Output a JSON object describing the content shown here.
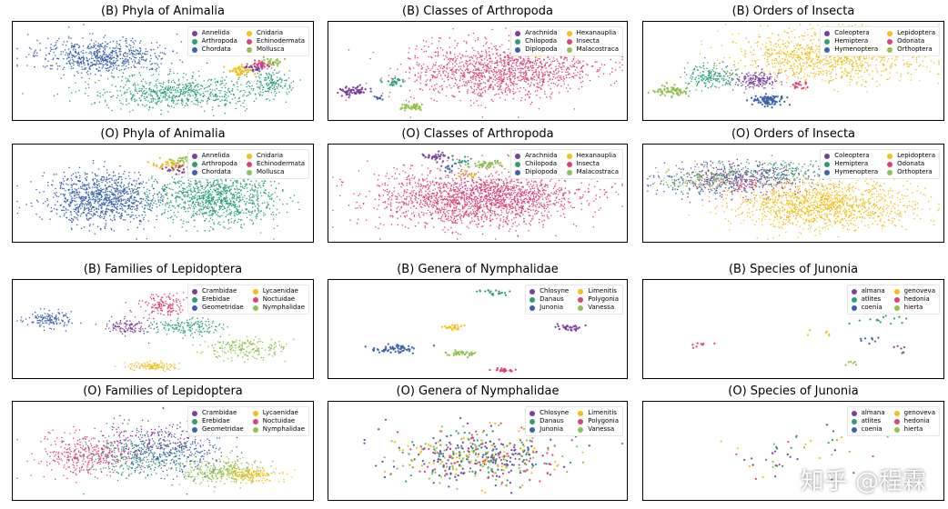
{
  "palette": [
    "#7b3fa0",
    "#2ca07a",
    "#3b62ad",
    "#f2be18",
    "#e0407a",
    "#8fc24c"
  ],
  "chart_data": [
    {
      "type": "scatter",
      "title": "(B) Phyla of Animalia",
      "legend": [
        "Annelida",
        "Arthropoda",
        "Chordata",
        "Cnidaria",
        "Echinodermata",
        "Mollusca"
      ],
      "clusters": [
        {
          "c": 2,
          "x": 0.3,
          "y": 0.35,
          "sx": 0.2,
          "sy": 0.16,
          "n": 650
        },
        {
          "c": 1,
          "x": 0.55,
          "y": 0.72,
          "sx": 0.25,
          "sy": 0.15,
          "n": 650
        },
        {
          "c": 1,
          "x": 0.86,
          "y": 0.62,
          "sx": 0.06,
          "sy": 0.12,
          "n": 140
        },
        {
          "c": 3,
          "x": 0.76,
          "y": 0.5,
          "sx": 0.04,
          "sy": 0.05,
          "n": 50
        },
        {
          "c": 4,
          "x": 0.82,
          "y": 0.43,
          "sx": 0.03,
          "sy": 0.04,
          "n": 30
        },
        {
          "c": 5,
          "x": 0.86,
          "y": 0.4,
          "sx": 0.03,
          "sy": 0.04,
          "n": 25
        },
        {
          "c": 0,
          "x": 0.8,
          "y": 0.47,
          "sx": 0.02,
          "sy": 0.03,
          "n": 20
        }
      ]
    },
    {
      "type": "scatter",
      "title": "(B) Classes of Arthropoda",
      "legend": [
        "Arachnida",
        "Chilopoda",
        "Diplopoda",
        "Hexanauplia",
        "Insecta",
        "Malacostraca"
      ],
      "clusters": [
        {
          "c": 4,
          "x": 0.58,
          "y": 0.5,
          "sx": 0.28,
          "sy": 0.26,
          "n": 1300
        },
        {
          "c": 0,
          "x": 0.08,
          "y": 0.7,
          "sx": 0.05,
          "sy": 0.05,
          "n": 60
        },
        {
          "c": 5,
          "x": 0.28,
          "y": 0.87,
          "sx": 0.04,
          "sy": 0.03,
          "n": 45
        },
        {
          "c": 1,
          "x": 0.22,
          "y": 0.62,
          "sx": 0.03,
          "sy": 0.04,
          "n": 25
        },
        {
          "c": 3,
          "x": 0.7,
          "y": 0.35,
          "sx": 0.02,
          "sy": 0.03,
          "n": 12
        },
        {
          "c": 2,
          "x": 0.17,
          "y": 0.78,
          "sx": 0.02,
          "sy": 0.02,
          "n": 10
        }
      ]
    },
    {
      "type": "scatter",
      "title": "(B) Orders of Insecta",
      "legend": [
        "Coleoptera",
        "Hemiptera",
        "Hymenoptera",
        "Lepidoptera",
        "Odonata",
        "Orthoptera"
      ],
      "clusters": [
        {
          "c": 3,
          "x": 0.62,
          "y": 0.35,
          "sx": 0.28,
          "sy": 0.24,
          "n": 1050
        },
        {
          "c": 1,
          "x": 0.22,
          "y": 0.55,
          "sx": 0.08,
          "sy": 0.1,
          "n": 200
        },
        {
          "c": 0,
          "x": 0.38,
          "y": 0.6,
          "sx": 0.07,
          "sy": 0.08,
          "n": 180
        },
        {
          "c": 2,
          "x": 0.42,
          "y": 0.8,
          "sx": 0.05,
          "sy": 0.05,
          "n": 90
        },
        {
          "c": 5,
          "x": 0.1,
          "y": 0.7,
          "sx": 0.05,
          "sy": 0.05,
          "n": 70
        },
        {
          "c": 4,
          "x": 0.52,
          "y": 0.65,
          "sx": 0.03,
          "sy": 0.04,
          "n": 20
        }
      ]
    },
    {
      "type": "scatter",
      "title": "(O) Phyla of Animalia",
      "legend": [
        "Annelida",
        "Arthropoda",
        "Chordata",
        "Cnidaria",
        "Echinodermata",
        "Mollusca"
      ],
      "clusters": [
        {
          "c": 2,
          "x": 0.3,
          "y": 0.55,
          "sx": 0.17,
          "sy": 0.24,
          "n": 1000
        },
        {
          "c": 1,
          "x": 0.68,
          "y": 0.55,
          "sx": 0.18,
          "sy": 0.24,
          "n": 1000
        },
        {
          "c": 3,
          "x": 0.52,
          "y": 0.2,
          "sx": 0.06,
          "sy": 0.06,
          "n": 40
        },
        {
          "c": 5,
          "x": 0.58,
          "y": 0.16,
          "sx": 0.05,
          "sy": 0.05,
          "n": 30
        },
        {
          "c": 0,
          "x": 0.55,
          "y": 0.25,
          "sx": 0.04,
          "sy": 0.05,
          "n": 20
        },
        {
          "c": 4,
          "x": 0.6,
          "y": 0.22,
          "sx": 0.03,
          "sy": 0.04,
          "n": 15
        }
      ]
    },
    {
      "type": "scatter",
      "title": "(O) Classes of Arthropoda",
      "legend": [
        "Arachnida",
        "Chilopoda",
        "Diplopoda",
        "Hexanauplia",
        "Insecta",
        "Malacostraca"
      ],
      "clusters": [
        {
          "c": 4,
          "x": 0.5,
          "y": 0.55,
          "sx": 0.3,
          "sy": 0.26,
          "n": 1900
        },
        {
          "c": 0,
          "x": 0.36,
          "y": 0.12,
          "sx": 0.04,
          "sy": 0.04,
          "n": 35
        },
        {
          "c": 5,
          "x": 0.53,
          "y": 0.2,
          "sx": 0.05,
          "sy": 0.04,
          "n": 40
        },
        {
          "c": 1,
          "x": 0.44,
          "y": 0.17,
          "sx": 0.03,
          "sy": 0.04,
          "n": 15
        },
        {
          "c": 3,
          "x": 0.46,
          "y": 0.3,
          "sx": 0.03,
          "sy": 0.04,
          "n": 12
        },
        {
          "c": 2,
          "x": 0.4,
          "y": 0.25,
          "sx": 0.02,
          "sy": 0.03,
          "n": 10
        }
      ]
    },
    {
      "type": "scatter",
      "title": "(O) Orders of Insecta",
      "legend": [
        "Coleoptera",
        "Hemiptera",
        "Hymenoptera",
        "Lepidoptera",
        "Odonata",
        "Orthoptera"
      ],
      "clusters": [
        {
          "c": 3,
          "x": 0.6,
          "y": 0.62,
          "sx": 0.27,
          "sy": 0.22,
          "n": 1250
        },
        {
          "c": 0,
          "x": 0.33,
          "y": 0.3,
          "sx": 0.22,
          "sy": 0.12,
          "n": 280
        },
        {
          "c": 2,
          "x": 0.25,
          "y": 0.4,
          "sx": 0.2,
          "sy": 0.12,
          "n": 220
        },
        {
          "c": 1,
          "x": 0.42,
          "y": 0.3,
          "sx": 0.22,
          "sy": 0.12,
          "n": 220
        },
        {
          "c": 5,
          "x": 0.2,
          "y": 0.35,
          "sx": 0.15,
          "sy": 0.12,
          "n": 140
        },
        {
          "c": 4,
          "x": 0.35,
          "y": 0.42,
          "sx": 0.15,
          "sy": 0.1,
          "n": 100
        }
      ]
    },
    {
      "type": "scatter",
      "title": "(B) Families of Lepidoptera",
      "legend": [
        "Crambidae",
        "Erebidae",
        "Geometridae",
        "Lycaenidae",
        "Noctuidae",
        "Nymphalidae"
      ],
      "clusters": [
        {
          "c": 2,
          "x": 0.12,
          "y": 0.4,
          "sx": 0.07,
          "sy": 0.08,
          "n": 140
        },
        {
          "c": 0,
          "x": 0.38,
          "y": 0.48,
          "sx": 0.07,
          "sy": 0.07,
          "n": 110
        },
        {
          "c": 4,
          "x": 0.5,
          "y": 0.25,
          "sx": 0.08,
          "sy": 0.1,
          "n": 150
        },
        {
          "c": 1,
          "x": 0.58,
          "y": 0.48,
          "sx": 0.1,
          "sy": 0.08,
          "n": 160
        },
        {
          "c": 5,
          "x": 0.78,
          "y": 0.7,
          "sx": 0.12,
          "sy": 0.1,
          "n": 200
        },
        {
          "c": 3,
          "x": 0.47,
          "y": 0.88,
          "sx": 0.08,
          "sy": 0.04,
          "n": 120
        }
      ]
    },
    {
      "type": "scatter",
      "title": "(B) Genera of Nymphalidae",
      "legend": [
        "Chlosyne",
        "Danaus",
        "Junonia",
        "Limenitis",
        "Polygonia",
        "Vanessa"
      ],
      "clusters": [
        {
          "c": 2,
          "x": 0.22,
          "y": 0.7,
          "sx": 0.08,
          "sy": 0.04,
          "n": 60
        },
        {
          "c": 5,
          "x": 0.45,
          "y": 0.75,
          "sx": 0.05,
          "sy": 0.03,
          "n": 35
        },
        {
          "c": 3,
          "x": 0.42,
          "y": 0.48,
          "sx": 0.03,
          "sy": 0.03,
          "n": 25
        },
        {
          "c": 4,
          "x": 0.58,
          "y": 0.92,
          "sx": 0.03,
          "sy": 0.02,
          "n": 25
        },
        {
          "c": 0,
          "x": 0.8,
          "y": 0.48,
          "sx": 0.04,
          "sy": 0.03,
          "n": 30
        },
        {
          "c": 1,
          "x": 0.55,
          "y": 0.12,
          "sx": 0.04,
          "sy": 0.03,
          "n": 20
        }
      ]
    },
    {
      "type": "scatter",
      "title": "(B) Species of Junonia",
      "legend": [
        "almana",
        "atlites",
        "coenia",
        "genoveva",
        "hedonia",
        "hierta"
      ],
      "clusters": [
        {
          "c": 1,
          "x": 0.8,
          "y": 0.4,
          "sx": 0.08,
          "sy": 0.05,
          "n": 14
        },
        {
          "c": 2,
          "x": 0.75,
          "y": 0.62,
          "sx": 0.04,
          "sy": 0.04,
          "n": 8
        },
        {
          "c": 4,
          "x": 0.18,
          "y": 0.65,
          "sx": 0.05,
          "sy": 0.05,
          "n": 8
        },
        {
          "c": 0,
          "x": 0.85,
          "y": 0.7,
          "sx": 0.04,
          "sy": 0.05,
          "n": 6
        },
        {
          "c": 3,
          "x": 0.6,
          "y": 0.55,
          "sx": 0.05,
          "sy": 0.05,
          "n": 6
        },
        {
          "c": 5,
          "x": 0.7,
          "y": 0.85,
          "sx": 0.06,
          "sy": 0.04,
          "n": 6
        }
      ]
    },
    {
      "type": "scatter",
      "title": "(O) Families of Lepidoptera",
      "legend": [
        "Crambidae",
        "Erebidae",
        "Geometridae",
        "Lycaenidae",
        "Noctuidae",
        "Nymphalidae"
      ],
      "clusters": [
        {
          "c": 4,
          "x": 0.25,
          "y": 0.55,
          "sx": 0.14,
          "sy": 0.2,
          "n": 350
        },
        {
          "c": 1,
          "x": 0.4,
          "y": 0.55,
          "sx": 0.15,
          "sy": 0.2,
          "n": 280
        },
        {
          "c": 2,
          "x": 0.55,
          "y": 0.55,
          "sx": 0.15,
          "sy": 0.2,
          "n": 250
        },
        {
          "c": 0,
          "x": 0.45,
          "y": 0.4,
          "sx": 0.15,
          "sy": 0.2,
          "n": 200
        },
        {
          "c": 5,
          "x": 0.7,
          "y": 0.7,
          "sx": 0.13,
          "sy": 0.12,
          "n": 300
        },
        {
          "c": 3,
          "x": 0.8,
          "y": 0.75,
          "sx": 0.08,
          "sy": 0.06,
          "n": 150
        }
      ]
    },
    {
      "type": "scatter",
      "title": "(O) Genera of Nymphalidae",
      "legend": [
        "Chlosyne",
        "Danaus",
        "Junonia",
        "Limenitis",
        "Polygonia",
        "Vanessa"
      ],
      "clusters": [
        {
          "c": 0,
          "x": 0.5,
          "y": 0.55,
          "sx": 0.25,
          "sy": 0.25,
          "n": 80
        },
        {
          "c": 1,
          "x": 0.5,
          "y": 0.55,
          "sx": 0.25,
          "sy": 0.25,
          "n": 80
        },
        {
          "c": 2,
          "x": 0.5,
          "y": 0.55,
          "sx": 0.25,
          "sy": 0.25,
          "n": 80
        },
        {
          "c": 3,
          "x": 0.5,
          "y": 0.55,
          "sx": 0.25,
          "sy": 0.25,
          "n": 80
        },
        {
          "c": 4,
          "x": 0.5,
          "y": 0.55,
          "sx": 0.25,
          "sy": 0.25,
          "n": 80
        },
        {
          "c": 5,
          "x": 0.5,
          "y": 0.55,
          "sx": 0.25,
          "sy": 0.25,
          "n": 80
        }
      ]
    },
    {
      "type": "scatter",
      "title": "(O) Species of Junonia",
      "legend": [
        "almana",
        "atlites",
        "coenia",
        "genoveva",
        "hedonia",
        "hierta"
      ],
      "clusters": [
        {
          "c": 0,
          "x": 0.5,
          "y": 0.55,
          "sx": 0.25,
          "sy": 0.25,
          "n": 8
        },
        {
          "c": 1,
          "x": 0.5,
          "y": 0.55,
          "sx": 0.25,
          "sy": 0.25,
          "n": 8
        },
        {
          "c": 2,
          "x": 0.5,
          "y": 0.55,
          "sx": 0.25,
          "sy": 0.25,
          "n": 8
        },
        {
          "c": 3,
          "x": 0.5,
          "y": 0.55,
          "sx": 0.25,
          "sy": 0.25,
          "n": 8
        },
        {
          "c": 4,
          "x": 0.5,
          "y": 0.55,
          "sx": 0.25,
          "sy": 0.25,
          "n": 8
        },
        {
          "c": 5,
          "x": 0.5,
          "y": 0.55,
          "sx": 0.25,
          "sy": 0.25,
          "n": 8
        }
      ]
    }
  ],
  "watermark": "知乎 @程霖"
}
